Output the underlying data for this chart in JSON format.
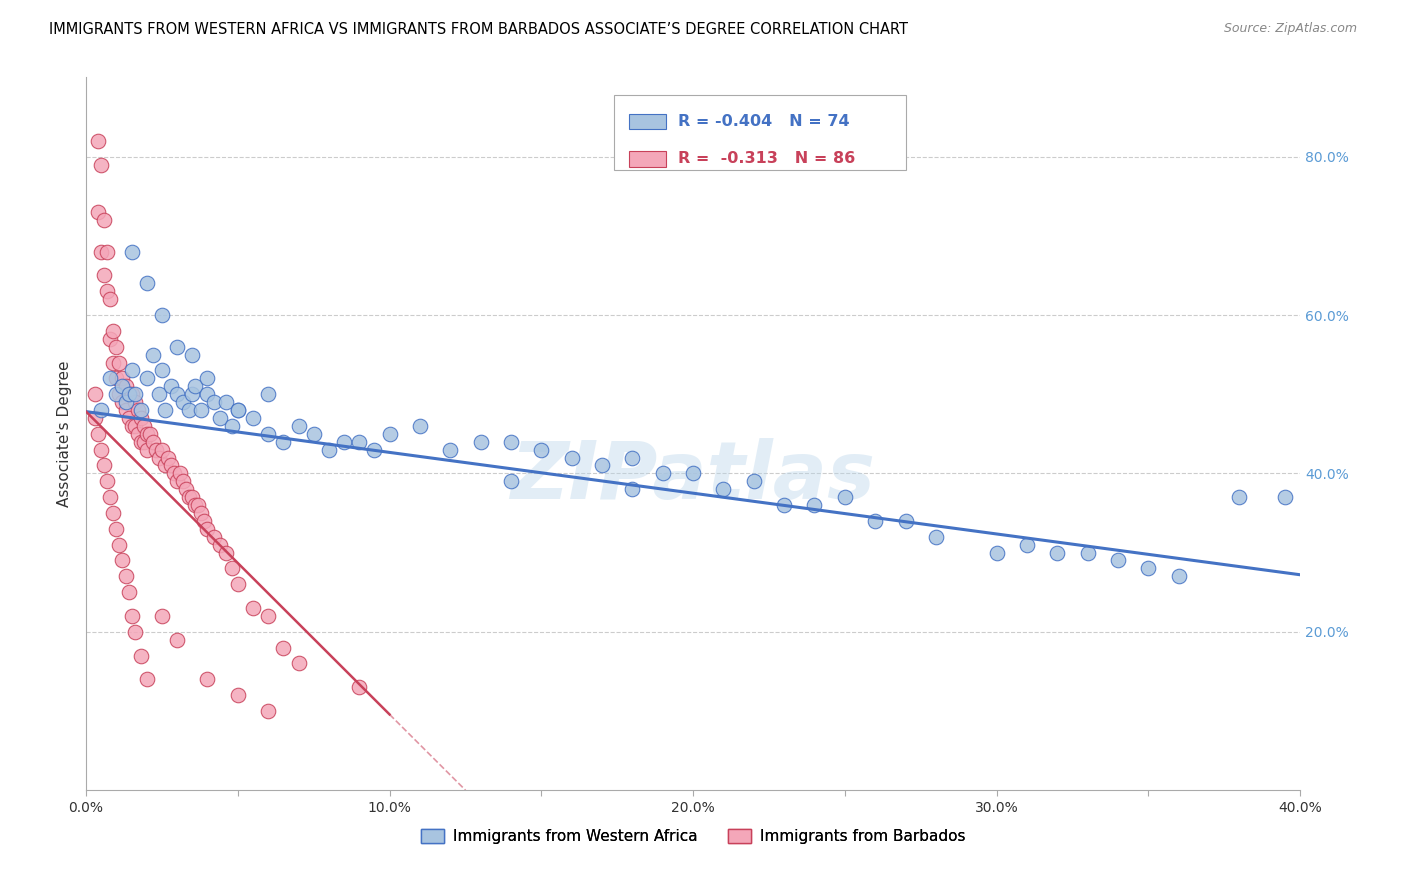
{
  "title": "IMMIGRANTS FROM WESTERN AFRICA VS IMMIGRANTS FROM BARBADOS ASSOCIATE’S DEGREE CORRELATION CHART",
  "source": "Source: ZipAtlas.com",
  "ylabel": "Associate's Degree",
  "xlim": [
    0.0,
    0.4
  ],
  "ylim": [
    0.0,
    0.9
  ],
  "blue_R": "-0.404",
  "blue_N": "74",
  "pink_R": "-0.313",
  "pink_N": "86",
  "legend_label_blue": "Immigrants from Western Africa",
  "legend_label_pink": "Immigrants from Barbados",
  "blue_color": "#a8c4e0",
  "blue_line_color": "#4472c4",
  "pink_color": "#f4a7b9",
  "pink_line_color": "#c8415a",
  "watermark": "ZIPatlas",
  "blue_line_x0": 0.0,
  "blue_line_y0": 0.478,
  "blue_line_x1": 0.4,
  "blue_line_y1": 0.272,
  "pink_line_x0": 0.0,
  "pink_line_y0": 0.478,
  "pink_line_x1": 0.125,
  "pink_line_y1": 0.0,
  "blue_scatter_x": [
    0.005,
    0.008,
    0.01,
    0.012,
    0.013,
    0.014,
    0.015,
    0.016,
    0.018,
    0.02,
    0.022,
    0.024,
    0.025,
    0.026,
    0.028,
    0.03,
    0.032,
    0.034,
    0.035,
    0.036,
    0.038,
    0.04,
    0.042,
    0.044,
    0.046,
    0.048,
    0.05,
    0.055,
    0.06,
    0.065,
    0.07,
    0.075,
    0.08,
    0.085,
    0.09,
    0.095,
    0.1,
    0.11,
    0.12,
    0.13,
    0.14,
    0.15,
    0.16,
    0.17,
    0.18,
    0.19,
    0.2,
    0.21,
    0.22,
    0.23,
    0.24,
    0.25,
    0.26,
    0.27,
    0.28,
    0.3,
    0.31,
    0.32,
    0.33,
    0.34,
    0.35,
    0.36,
    0.38,
    0.395,
    0.015,
    0.02,
    0.025,
    0.03,
    0.035,
    0.04,
    0.05,
    0.06,
    0.14,
    0.18
  ],
  "blue_scatter_y": [
    0.48,
    0.52,
    0.5,
    0.51,
    0.49,
    0.5,
    0.53,
    0.5,
    0.48,
    0.52,
    0.55,
    0.5,
    0.53,
    0.48,
    0.51,
    0.5,
    0.49,
    0.48,
    0.5,
    0.51,
    0.48,
    0.5,
    0.49,
    0.47,
    0.49,
    0.46,
    0.48,
    0.47,
    0.45,
    0.44,
    0.46,
    0.45,
    0.43,
    0.44,
    0.44,
    0.43,
    0.45,
    0.46,
    0.43,
    0.44,
    0.44,
    0.43,
    0.42,
    0.41,
    0.42,
    0.4,
    0.4,
    0.38,
    0.39,
    0.36,
    0.36,
    0.37,
    0.34,
    0.34,
    0.32,
    0.3,
    0.31,
    0.3,
    0.3,
    0.29,
    0.28,
    0.27,
    0.37,
    0.37,
    0.68,
    0.64,
    0.6,
    0.56,
    0.55,
    0.52,
    0.48,
    0.5,
    0.39,
    0.38
  ],
  "pink_scatter_x": [
    0.003,
    0.004,
    0.004,
    0.005,
    0.005,
    0.006,
    0.006,
    0.007,
    0.007,
    0.008,
    0.008,
    0.009,
    0.009,
    0.01,
    0.01,
    0.011,
    0.011,
    0.012,
    0.012,
    0.013,
    0.013,
    0.014,
    0.014,
    0.015,
    0.015,
    0.016,
    0.016,
    0.017,
    0.017,
    0.018,
    0.018,
    0.019,
    0.019,
    0.02,
    0.02,
    0.021,
    0.022,
    0.023,
    0.024,
    0.025,
    0.026,
    0.027,
    0.028,
    0.029,
    0.03,
    0.031,
    0.032,
    0.033,
    0.034,
    0.035,
    0.036,
    0.037,
    0.038,
    0.039,
    0.04,
    0.042,
    0.044,
    0.046,
    0.048,
    0.05,
    0.055,
    0.06,
    0.065,
    0.07,
    0.003,
    0.004,
    0.005,
    0.006,
    0.007,
    0.008,
    0.009,
    0.01,
    0.011,
    0.012,
    0.013,
    0.014,
    0.015,
    0.016,
    0.018,
    0.02,
    0.025,
    0.03,
    0.04,
    0.05,
    0.06,
    0.09
  ],
  "pink_scatter_y": [
    0.5,
    0.82,
    0.73,
    0.79,
    0.68,
    0.72,
    0.65,
    0.68,
    0.63,
    0.62,
    0.57,
    0.58,
    0.54,
    0.56,
    0.52,
    0.54,
    0.5,
    0.52,
    0.49,
    0.51,
    0.48,
    0.5,
    0.47,
    0.5,
    0.46,
    0.49,
    0.46,
    0.48,
    0.45,
    0.47,
    0.44,
    0.46,
    0.44,
    0.45,
    0.43,
    0.45,
    0.44,
    0.43,
    0.42,
    0.43,
    0.41,
    0.42,
    0.41,
    0.4,
    0.39,
    0.4,
    0.39,
    0.38,
    0.37,
    0.37,
    0.36,
    0.36,
    0.35,
    0.34,
    0.33,
    0.32,
    0.31,
    0.3,
    0.28,
    0.26,
    0.23,
    0.22,
    0.18,
    0.16,
    0.47,
    0.45,
    0.43,
    0.41,
    0.39,
    0.37,
    0.35,
    0.33,
    0.31,
    0.29,
    0.27,
    0.25,
    0.22,
    0.2,
    0.17,
    0.14,
    0.22,
    0.19,
    0.14,
    0.12,
    0.1,
    0.13
  ]
}
